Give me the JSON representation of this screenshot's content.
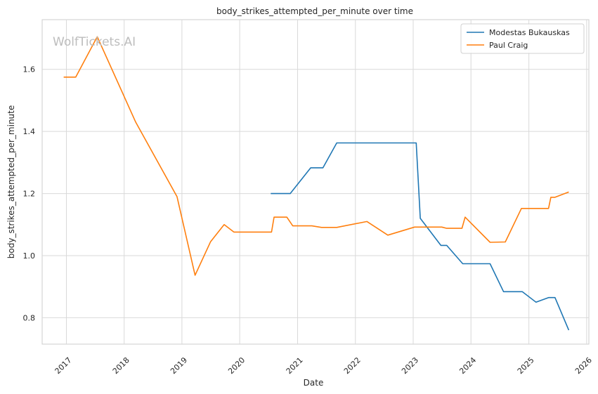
{
  "watermark": "WolfTickets.AI",
  "chart_data": {
    "type": "line",
    "title": "body_strikes_attempted_per_minute over time",
    "xlabel": "Date",
    "ylabel": "body_strikes_attempted_per_minute",
    "x_type": "date",
    "xlim": [
      "2016-08-01",
      "2026-01-15"
    ],
    "ylim": [
      0.715,
      1.76
    ],
    "x_ticks": [
      "2017-01-01",
      "2018-01-01",
      "2019-01-01",
      "2020-01-01",
      "2021-01-01",
      "2022-01-01",
      "2023-01-01",
      "2024-01-01",
      "2025-01-01",
      "2026-01-01"
    ],
    "x_tick_labels": [
      "2017",
      "2018",
      "2019",
      "2020",
      "2021",
      "2022",
      "2023",
      "2024",
      "2025",
      "2026"
    ],
    "y_ticks": [
      0.8,
      1.0,
      1.2,
      1.4,
      1.6
    ],
    "y_tick_labels": [
      "0.8",
      "1.0",
      "1.2",
      "1.4",
      "1.6"
    ],
    "grid": true,
    "legend_position": "top-right",
    "series": [
      {
        "name": "Modestas Bukauskas",
        "color": "#1f77b4",
        "points": [
          [
            "2020-07-15",
            1.2
          ],
          [
            "2020-11-15",
            1.2
          ],
          [
            "2021-03-25",
            1.283
          ],
          [
            "2021-06-10",
            1.283
          ],
          [
            "2021-09-05",
            1.363
          ],
          [
            "2023-01-20",
            1.363
          ],
          [
            "2023-02-15",
            1.12
          ],
          [
            "2023-06-25",
            1.033
          ],
          [
            "2023-08-01",
            1.033
          ],
          [
            "2023-11-10",
            0.974
          ],
          [
            "2024-05-01",
            0.974
          ],
          [
            "2024-07-25",
            0.884
          ],
          [
            "2024-11-20",
            0.884
          ],
          [
            "2025-02-15",
            0.85
          ],
          [
            "2025-05-05",
            0.865
          ],
          [
            "2025-06-15",
            0.865
          ],
          [
            "2025-09-10",
            0.76
          ]
        ]
      },
      {
        "name": "Paul Craig",
        "color": "#ff7f0e",
        "points": [
          [
            "2016-12-15",
            1.575
          ],
          [
            "2017-03-01",
            1.575
          ],
          [
            "2017-07-15",
            1.705
          ],
          [
            "2018-03-15",
            1.43
          ],
          [
            "2018-12-01",
            1.19
          ],
          [
            "2019-03-25",
            0.937
          ],
          [
            "2019-07-01",
            1.045
          ],
          [
            "2019-09-25",
            1.1
          ],
          [
            "2019-11-25",
            1.076
          ],
          [
            "2020-07-20",
            1.076
          ],
          [
            "2020-08-05",
            1.124
          ],
          [
            "2020-10-25",
            1.124
          ],
          [
            "2020-12-01",
            1.096
          ],
          [
            "2021-04-01",
            1.096
          ],
          [
            "2021-06-01",
            1.091
          ],
          [
            "2021-09-05",
            1.091
          ],
          [
            "2022-03-15",
            1.11
          ],
          [
            "2022-07-25",
            1.066
          ],
          [
            "2023-01-10",
            1.092
          ],
          [
            "2023-07-01",
            1.092
          ],
          [
            "2023-08-01",
            1.088
          ],
          [
            "2023-11-05",
            1.088
          ],
          [
            "2023-11-25",
            1.124
          ],
          [
            "2024-05-01",
            1.043
          ],
          [
            "2024-08-05",
            1.044
          ],
          [
            "2024-11-15",
            1.152
          ],
          [
            "2025-05-05",
            1.152
          ],
          [
            "2025-05-20",
            1.188
          ],
          [
            "2025-06-15",
            1.188
          ],
          [
            "2025-09-10",
            1.205
          ]
        ]
      }
    ]
  }
}
